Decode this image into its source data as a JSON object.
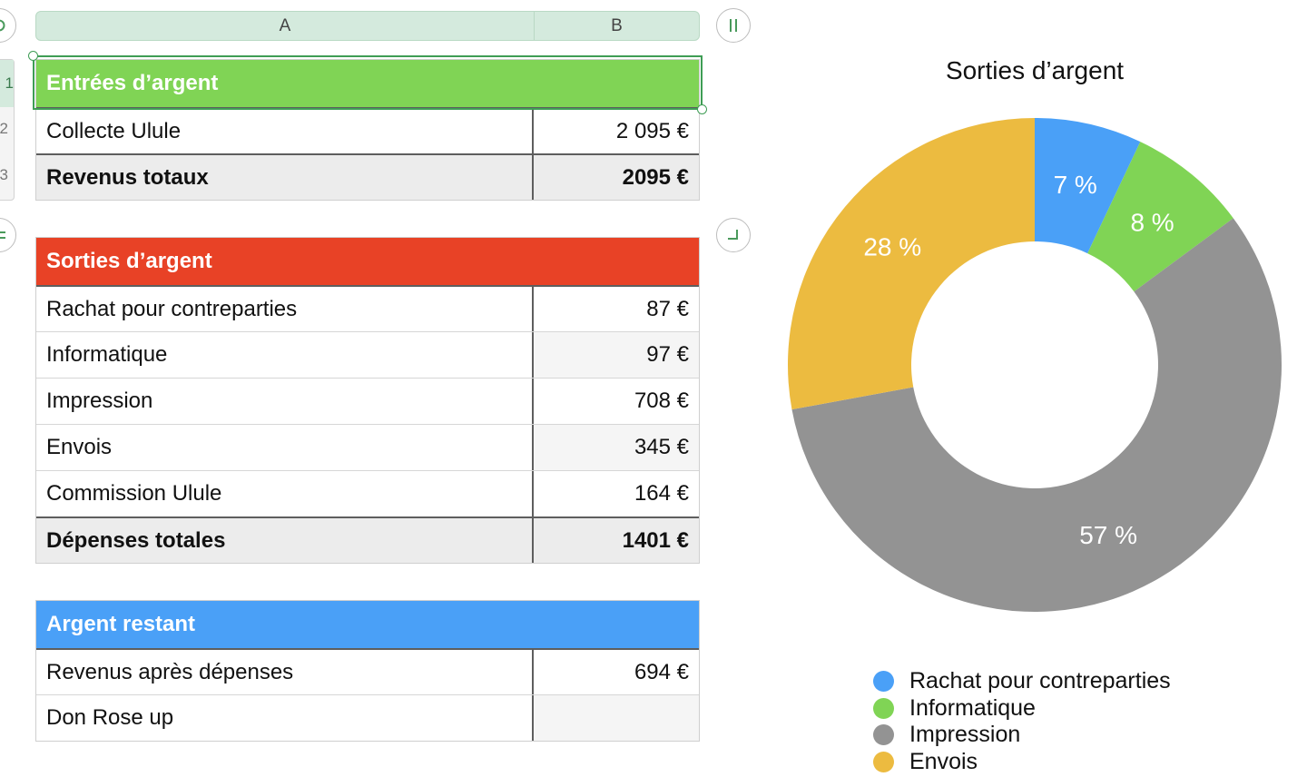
{
  "sheet": {
    "columns": [
      "A",
      "B"
    ],
    "rows": [
      "1",
      "2",
      "3"
    ]
  },
  "tables": {
    "income": {
      "title": "Entrées d’argent",
      "rows": [
        {
          "label": "Collecte Ulule",
          "value": "2 095 €"
        }
      ],
      "total": {
        "label": "Revenus totaux",
        "value": "2095 €"
      }
    },
    "expenses": {
      "title": "Sorties d’argent",
      "rows": [
        {
          "label": "Rachat pour contreparties",
          "value": "87 €"
        },
        {
          "label": "Informatique",
          "value": "97 €"
        },
        {
          "label": "Impression",
          "value": "708 €"
        },
        {
          "label": "Envois",
          "value": "345 €"
        },
        {
          "label": "Commission Ulule",
          "value": "164 €"
        }
      ],
      "total": {
        "label": "Dépenses totales",
        "value": "1401 €"
      }
    },
    "remaining": {
      "title": "Argent restant",
      "rows": [
        {
          "label": "Revenus après dépenses",
          "value": "694 €"
        },
        {
          "label": "Don Rose up",
          "value": ""
        }
      ]
    }
  },
  "colors": {
    "income_header": "#80d455",
    "expenses_header": "#e84226",
    "remaining_header": "#4aa0f7",
    "selection": "#3f9d55"
  },
  "chart_data": {
    "type": "pie",
    "title": "Sorties d’argent",
    "categories": [
      "Rachat pour contreparties",
      "Informatique",
      "Impression",
      "Envois"
    ],
    "values": [
      87,
      97,
      708,
      345
    ],
    "labels": [
      "7 %",
      "8 %",
      "57 %",
      "28 %"
    ],
    "colors": [
      "#4aa0f7",
      "#80d455",
      "#939393",
      "#ecbb40"
    ],
    "legend_position": "bottom"
  }
}
